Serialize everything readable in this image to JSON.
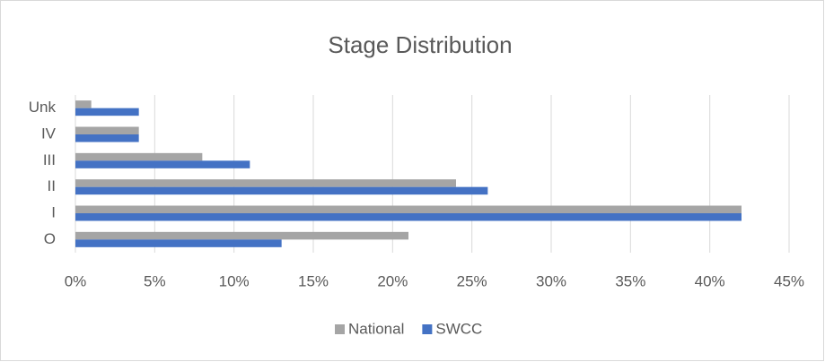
{
  "chart_data": {
    "type": "hbar",
    "title": "Stage Distribution",
    "categories": [
      "O",
      "I",
      "II",
      "III",
      "IV",
      "Unk"
    ],
    "series": [
      {
        "name": "National",
        "color": "#a5a5a5",
        "values": [
          21,
          42,
          24,
          8,
          4,
          1
        ]
      },
      {
        "name": "SWCC",
        "color": "#4472c4",
        "values": [
          13,
          42,
          26,
          11,
          4,
          4
        ]
      }
    ],
    "xlim": [
      0,
      45
    ],
    "xticks": [
      {
        "value": 0,
        "label": "0%"
      },
      {
        "value": 5,
        "label": "5%"
      },
      {
        "value": 10,
        "label": "10%"
      },
      {
        "value": 15,
        "label": "15%"
      },
      {
        "value": 20,
        "label": "20%"
      },
      {
        "value": 25,
        "label": "25%"
      },
      {
        "value": 30,
        "label": "30%"
      },
      {
        "value": 35,
        "label": "35%"
      },
      {
        "value": 40,
        "label": "40%"
      },
      {
        "value": 45,
        "label": "45%"
      }
    ],
    "grid": true,
    "legend": "bottom"
  }
}
